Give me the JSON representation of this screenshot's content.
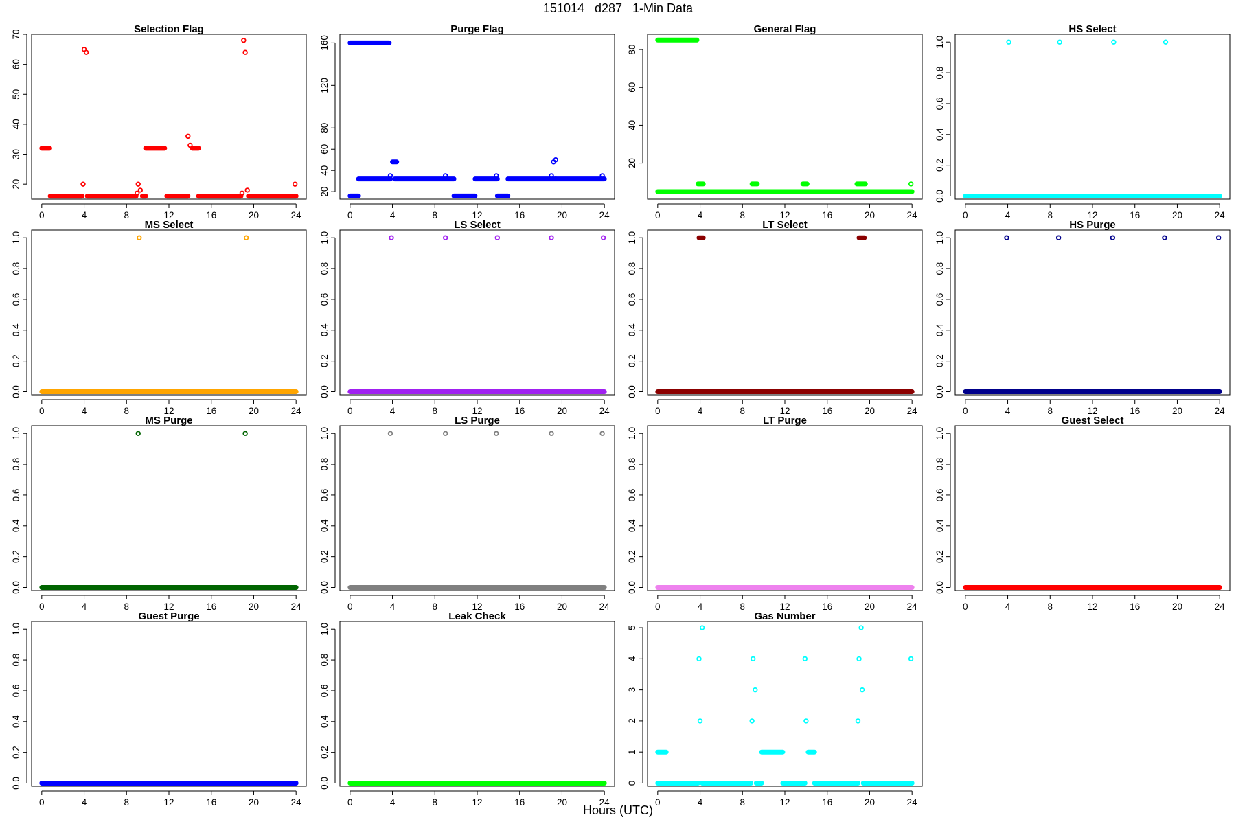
{
  "figure": {
    "title": "151014   d287   1-Min Data",
    "xlabel": "Hours (UTC)"
  },
  "chart_data": [
    {
      "type": "scatter",
      "title": "Selection Flag",
      "color": "#ff0000",
      "xlim": [
        0,
        24
      ],
      "xticks": [
        0,
        4,
        8,
        12,
        16,
        20,
        24
      ],
      "ylim": [
        15,
        70
      ],
      "yticks": [
        20,
        30,
        40,
        50,
        60,
        70
      ],
      "segments": [
        {
          "x0": 0,
          "x1": 0.75,
          "y": 32
        },
        {
          "x0": 0.8,
          "x1": 3.8,
          "y": 16
        },
        {
          "x0": 4.3,
          "x1": 8.9,
          "y": 16
        },
        {
          "x0": 9.5,
          "x1": 9.8,
          "y": 16
        },
        {
          "x0": 9.8,
          "x1": 11.6,
          "y": 32
        },
        {
          "x0": 11.8,
          "x1": 13.8,
          "y": 16
        },
        {
          "x0": 14.2,
          "x1": 14.8,
          "y": 32
        },
        {
          "x0": 14.8,
          "x1": 18.8,
          "y": 16
        },
        {
          "x0": 19.5,
          "x1": 24,
          "y": 16
        }
      ],
      "points": [
        [
          3.9,
          20
        ],
        [
          4.0,
          65
        ],
        [
          4.2,
          64
        ],
        [
          9.0,
          17
        ],
        [
          9.1,
          20
        ],
        [
          9.3,
          18
        ],
        [
          13.8,
          36
        ],
        [
          14.0,
          33
        ],
        [
          18.9,
          17
        ],
        [
          19.05,
          68
        ],
        [
          19.2,
          64
        ],
        [
          19.4,
          18
        ],
        [
          23.9,
          20
        ]
      ]
    },
    {
      "type": "scatter",
      "title": "Purge Flag",
      "color": "#0000ff",
      "xlim": [
        0,
        24
      ],
      "xticks": [
        0,
        4,
        8,
        12,
        16,
        20,
        24
      ],
      "ylim": [
        13,
        168
      ],
      "yticks": [
        20,
        40,
        60,
        80,
        120,
        160
      ],
      "segments": [
        {
          "x0": 0,
          "x1": 0.8,
          "y": 16
        },
        {
          "x0": 0,
          "x1": 3.7,
          "y": 160
        },
        {
          "x0": 0.8,
          "x1": 3.8,
          "y": 32
        },
        {
          "x0": 4.0,
          "x1": 4.4,
          "y": 48
        },
        {
          "x0": 4.2,
          "x1": 9.8,
          "y": 32
        },
        {
          "x0": 9.8,
          "x1": 11.8,
          "y": 16
        },
        {
          "x0": 11.8,
          "x1": 13.9,
          "y": 32
        },
        {
          "x0": 13.9,
          "x1": 14.9,
          "y": 16
        },
        {
          "x0": 14.9,
          "x1": 19.4,
          "y": 32
        },
        {
          "x0": 19.4,
          "x1": 24,
          "y": 32
        }
      ],
      "points": [
        [
          3.8,
          35
        ],
        [
          9.0,
          35
        ],
        [
          13.8,
          35
        ],
        [
          19.0,
          35
        ],
        [
          19.2,
          48
        ],
        [
          19.4,
          50
        ],
        [
          23.8,
          35
        ]
      ]
    },
    {
      "type": "scatter",
      "title": "General Flag",
      "color": "#00ff00",
      "xlim": [
        0,
        24
      ],
      "xticks": [
        0,
        4,
        8,
        12,
        16,
        20,
        24
      ],
      "ylim": [
        1,
        88
      ],
      "yticks": [
        20,
        40,
        60,
        80
      ],
      "segments": [
        {
          "x0": 0,
          "x1": 3.7,
          "y": 85
        },
        {
          "x0": 0,
          "x1": 24,
          "y": 5
        },
        {
          "x0": 3.8,
          "x1": 4.3,
          "y": 9
        },
        {
          "x0": 8.9,
          "x1": 9.4,
          "y": 9
        },
        {
          "x0": 13.7,
          "x1": 14.1,
          "y": 9
        },
        {
          "x0": 18.8,
          "x1": 19.6,
          "y": 9
        }
      ],
      "points": [
        [
          23.9,
          9
        ]
      ]
    },
    {
      "type": "scatter",
      "title": "HS Select",
      "color": "#00ffff",
      "xlim": [
        0,
        24
      ],
      "xticks": [
        0,
        4,
        8,
        12,
        16,
        20,
        24
      ],
      "ylim": [
        -0.02,
        1.05
      ],
      "yticks": [
        0.0,
        0.2,
        0.4,
        0.6,
        0.8,
        1.0
      ],
      "segments": [
        {
          "x0": 0,
          "x1": 24,
          "y": 0
        }
      ],
      "points": [
        [
          4.1,
          1
        ],
        [
          8.9,
          1
        ],
        [
          14.0,
          1
        ],
        [
          18.9,
          1
        ]
      ]
    },
    {
      "type": "scatter",
      "title": "MS Select",
      "color": "#ffa500",
      "xlim": [
        0,
        24
      ],
      "xticks": [
        0,
        4,
        8,
        12,
        16,
        20,
        24
      ],
      "ylim": [
        -0.02,
        1.05
      ],
      "yticks": [
        0.0,
        0.2,
        0.4,
        0.6,
        0.8,
        1.0
      ],
      "segments": [
        {
          "x0": 0,
          "x1": 24,
          "y": 0
        }
      ],
      "points": [
        [
          9.2,
          1
        ],
        [
          19.3,
          1
        ]
      ]
    },
    {
      "type": "scatter",
      "title": "LS Select",
      "color": "#a020f0",
      "xlim": [
        0,
        24
      ],
      "xticks": [
        0,
        4,
        8,
        12,
        16,
        20,
        24
      ],
      "ylim": [
        -0.02,
        1.05
      ],
      "yticks": [
        0.0,
        0.2,
        0.4,
        0.6,
        0.8,
        1.0
      ],
      "segments": [
        {
          "x0": 0,
          "x1": 24,
          "y": 0
        }
      ],
      "points": [
        [
          3.9,
          1
        ],
        [
          9.0,
          1
        ],
        [
          13.9,
          1
        ],
        [
          19.0,
          1
        ],
        [
          23.9,
          1
        ]
      ]
    },
    {
      "type": "scatter",
      "title": "LT Select",
      "color": "#8b0000",
      "xlim": [
        0,
        24
      ],
      "xticks": [
        0,
        4,
        8,
        12,
        16,
        20,
        24
      ],
      "ylim": [
        -0.02,
        1.05
      ],
      "yticks": [
        0.0,
        0.2,
        0.4,
        0.6,
        0.8,
        1.0
      ],
      "segments": [
        {
          "x0": 0,
          "x1": 24,
          "y": 0
        },
        {
          "x0": 3.9,
          "x1": 4.3,
          "y": 1
        },
        {
          "x0": 19.0,
          "x1": 19.5,
          "y": 1
        }
      ],
      "points": []
    },
    {
      "type": "scatter",
      "title": "HS Purge",
      "color": "#00008b",
      "xlim": [
        0,
        24
      ],
      "xticks": [
        0,
        4,
        8,
        12,
        16,
        20,
        24
      ],
      "ylim": [
        -0.02,
        1.05
      ],
      "yticks": [
        0.0,
        0.2,
        0.4,
        0.6,
        0.8,
        1.0
      ],
      "segments": [
        {
          "x0": 0,
          "x1": 24,
          "y": 0
        }
      ],
      "points": [
        [
          3.9,
          1
        ],
        [
          8.8,
          1
        ],
        [
          13.9,
          1
        ],
        [
          18.8,
          1
        ],
        [
          23.9,
          1
        ]
      ]
    },
    {
      "type": "scatter",
      "title": "MS Purge",
      "color": "#006400",
      "xlim": [
        0,
        24
      ],
      "xticks": [
        0,
        4,
        8,
        12,
        16,
        20,
        24
      ],
      "ylim": [
        -0.02,
        1.05
      ],
      "yticks": [
        0.0,
        0.2,
        0.4,
        0.6,
        0.8,
        1.0
      ],
      "segments": [
        {
          "x0": 0,
          "x1": 24,
          "y": 0
        }
      ],
      "points": [
        [
          9.1,
          1
        ],
        [
          19.2,
          1
        ]
      ]
    },
    {
      "type": "scatter",
      "title": "LS Purge",
      "color": "#808080",
      "xlim": [
        0,
        24
      ],
      "xticks": [
        0,
        4,
        8,
        12,
        16,
        20,
        24
      ],
      "ylim": [
        -0.02,
        1.05
      ],
      "yticks": [
        0.0,
        0.2,
        0.4,
        0.6,
        0.8,
        1.0
      ],
      "segments": [
        {
          "x0": 0,
          "x1": 24,
          "y": 0
        }
      ],
      "points": [
        [
          3.8,
          1
        ],
        [
          9.0,
          1
        ],
        [
          13.8,
          1
        ],
        [
          19.0,
          1
        ],
        [
          23.8,
          1
        ]
      ]
    },
    {
      "type": "scatter",
      "title": "LT Purge",
      "color": "#ee82ee",
      "xlim": [
        0,
        24
      ],
      "xticks": [
        0,
        4,
        8,
        12,
        16,
        20,
        24
      ],
      "ylim": [
        -0.02,
        1.05
      ],
      "yticks": [
        0.0,
        0.2,
        0.4,
        0.6,
        0.8,
        1.0
      ],
      "segments": [
        {
          "x0": 0,
          "x1": 24,
          "y": 0
        }
      ],
      "points": []
    },
    {
      "type": "scatter",
      "title": "Guest Select",
      "color": "#ff0000",
      "xlim": [
        0,
        24
      ],
      "xticks": [
        0,
        4,
        8,
        12,
        16,
        20,
        24
      ],
      "ylim": [
        -0.02,
        1.05
      ],
      "yticks": [
        0.0,
        0.2,
        0.4,
        0.6,
        0.8,
        1.0
      ],
      "segments": [
        {
          "x0": 0,
          "x1": 24,
          "y": 0
        }
      ],
      "points": []
    },
    {
      "type": "scatter",
      "title": "Guest Purge",
      "color": "#0000ff",
      "xlim": [
        0,
        24
      ],
      "xticks": [
        0,
        4,
        8,
        12,
        16,
        20,
        24
      ],
      "ylim": [
        -0.02,
        1.05
      ],
      "yticks": [
        0.0,
        0.2,
        0.4,
        0.6,
        0.8,
        1.0
      ],
      "segments": [
        {
          "x0": 0,
          "x1": 24,
          "y": 0
        }
      ],
      "points": []
    },
    {
      "type": "scatter",
      "title": "Leak Check",
      "color": "#00ff00",
      "xlim": [
        0,
        24
      ],
      "xticks": [
        0,
        4,
        8,
        12,
        16,
        20,
        24
      ],
      "ylim": [
        -0.02,
        1.05
      ],
      "yticks": [
        0.0,
        0.2,
        0.4,
        0.6,
        0.8,
        1.0
      ],
      "segments": [
        {
          "x0": 0,
          "x1": 24,
          "y": 0
        }
      ],
      "points": []
    },
    {
      "type": "scatter",
      "title": "Gas Number",
      "color": "#00ffff",
      "xlim": [
        0,
        24
      ],
      "xticks": [
        0,
        4,
        8,
        12,
        16,
        20,
        24
      ],
      "ylim": [
        -0.1,
        5.2
      ],
      "yticks": [
        0,
        1,
        2,
        3,
        4,
        5
      ],
      "segments": [
        {
          "x0": 0,
          "x1": 3.8,
          "y": 0
        },
        {
          "x0": 0,
          "x1": 0.8,
          "y": 1
        },
        {
          "x0": 4.2,
          "x1": 8.8,
          "y": 0
        },
        {
          "x0": 9.3,
          "x1": 9.8,
          "y": 0
        },
        {
          "x0": 9.8,
          "x1": 11.8,
          "y": 1
        },
        {
          "x0": 11.8,
          "x1": 13.9,
          "y": 0
        },
        {
          "x0": 14.2,
          "x1": 14.8,
          "y": 1
        },
        {
          "x0": 14.8,
          "x1": 18.9,
          "y": 0
        },
        {
          "x0": 19.4,
          "x1": 24,
          "y": 0
        }
      ],
      "points": [
        [
          3.9,
          4
        ],
        [
          4.0,
          2
        ],
        [
          4.2,
          5
        ],
        [
          8.9,
          2
        ],
        [
          9.0,
          4
        ],
        [
          9.2,
          3
        ],
        [
          13.9,
          4
        ],
        [
          14.0,
          2
        ],
        [
          18.9,
          2
        ],
        [
          19.0,
          4
        ],
        [
          19.2,
          5
        ],
        [
          19.3,
          3
        ],
        [
          23.9,
          4
        ]
      ]
    }
  ]
}
